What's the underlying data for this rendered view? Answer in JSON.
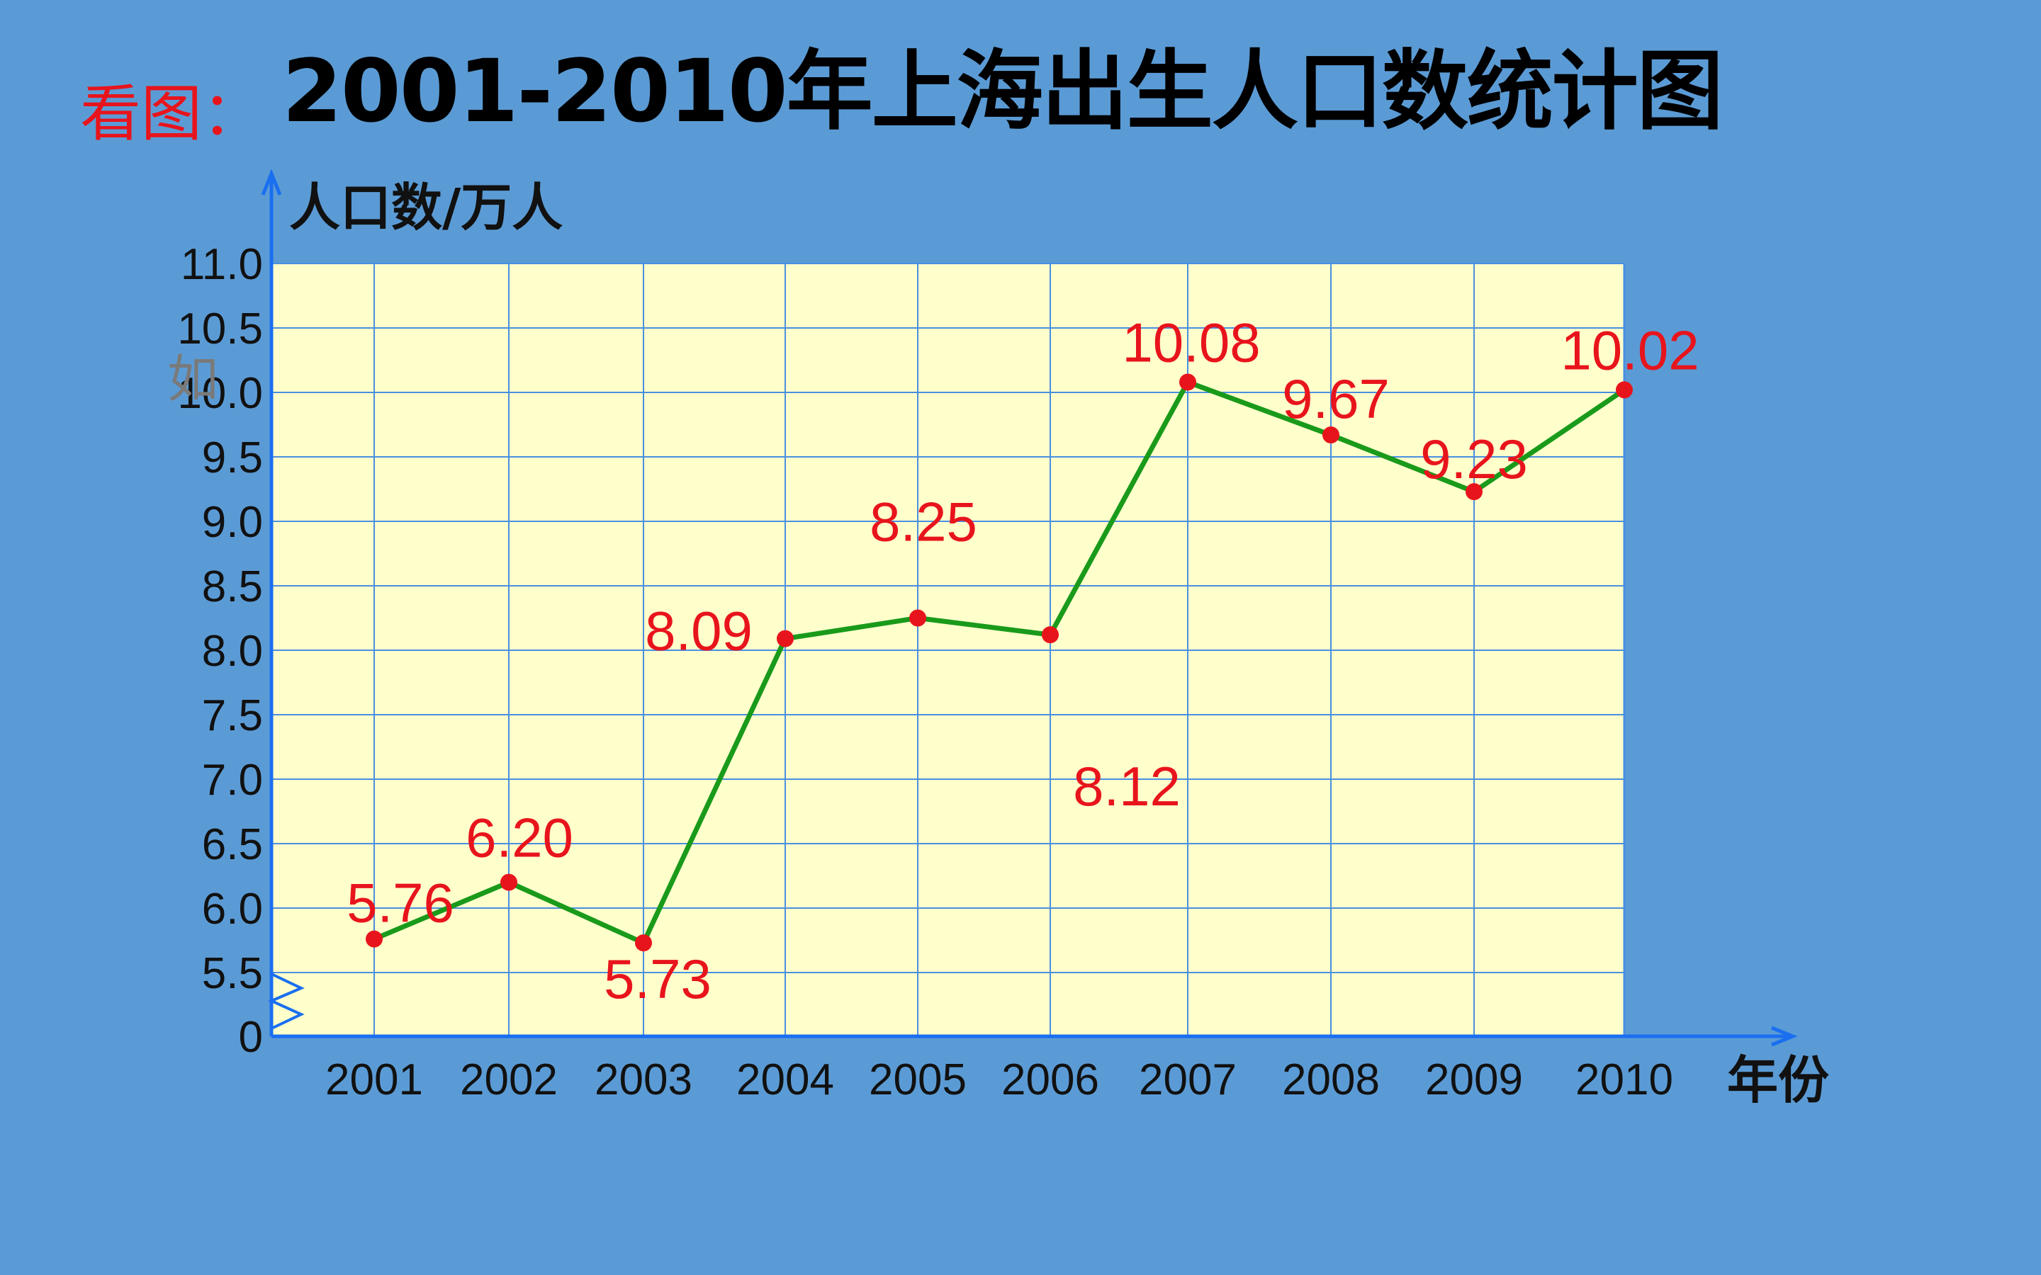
{
  "header": {
    "prefix": "看图：",
    "title": "2001-2010年上海出生人口数统计图"
  },
  "overlay_text": "如",
  "chart_data": {
    "type": "line",
    "title": "2001-2010年上海出生人口数统计图",
    "xlabel": "年份",
    "ylabel": "人口数/万人",
    "categories": [
      "2001",
      "2002",
      "2003",
      "2004",
      "2005",
      "2006",
      "2007",
      "2008",
      "2009",
      "2010"
    ],
    "series": [
      {
        "values": [
          5.76,
          6.2,
          5.73,
          8.09,
          8.25,
          8.12,
          10.08,
          9.67,
          9.23,
          10.02
        ]
      }
    ],
    "data_labels": [
      "5.76",
      "6.20",
      "5.73",
      "8.09",
      "8.25",
      "8.12",
      "10.08",
      "9.67",
      "9.23",
      "10.02"
    ],
    "y_ticks": [
      "0",
      "5.5",
      "6.0",
      "6.5",
      "7.0",
      "7.5",
      "8.0",
      "8.5",
      "9.0",
      "9.5",
      "10.0",
      "10.5",
      "11.0"
    ],
    "ylim": [
      5.0,
      11.0
    ],
    "axis_break": true,
    "grid": true,
    "colors": {
      "plot_background": "#ffffcc",
      "grid": "#4a8fe0",
      "axis": "#1a6ff0",
      "line": "#1a9a1a",
      "marker": "#e8141c",
      "label": "#e8141c"
    }
  }
}
